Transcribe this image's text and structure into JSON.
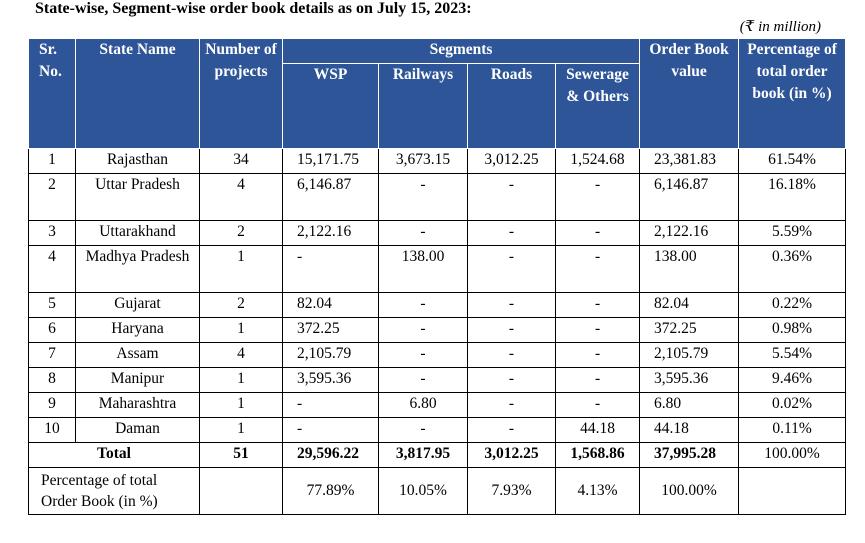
{
  "title": "State-wise, Segment-wise order book details as on July 15, 2023:",
  "unit_note": "(₹ in million)",
  "headers": {
    "sr_no": "Sr. No.",
    "state_name": "State Name",
    "num_projects": "Number of projects",
    "segments": "Segments",
    "wsp": "WSP",
    "railways": "Railways",
    "roads": "Roads",
    "sewerage": "Sewerage & Others",
    "order_book_value": "Order Book value",
    "percentage": "Percentage of total order book (in %)"
  },
  "rows": [
    {
      "sr": "1",
      "state": "Rajasthan",
      "projects": "34",
      "wsp": "15,171.75",
      "railways": "3,673.15",
      "roads": "3,012.25",
      "sewerage": "1,524.68",
      "value": "23,381.83",
      "pct": "61.54%"
    },
    {
      "sr": "2",
      "state": "Uttar Pradesh",
      "projects": "4",
      "wsp": "6,146.87",
      "railways": "-",
      "roads": "-",
      "sewerage": "-",
      "value": "6,146.87",
      "pct": "16.18%"
    },
    {
      "sr": "3",
      "state": "Uttarakhand",
      "projects": "2",
      "wsp": "2,122.16",
      "railways": "-",
      "roads": "-",
      "sewerage": "-",
      "value": "2,122.16",
      "pct": "5.59%"
    },
    {
      "sr": "4",
      "state": "Madhya Pradesh",
      "projects": "1",
      "wsp": "-",
      "railways": "138.00",
      "roads": "-",
      "sewerage": "-",
      "value": "138.00",
      "pct": "0.36%"
    },
    {
      "sr": "5",
      "state": "Gujarat",
      "projects": "2",
      "wsp": "82.04",
      "railways": "-",
      "roads": "-",
      "sewerage": "-",
      "value": "82.04",
      "pct": "0.22%"
    },
    {
      "sr": "6",
      "state": "Haryana",
      "projects": "1",
      "wsp": "372.25",
      "railways": "-",
      "roads": "-",
      "sewerage": "-",
      "value": "372.25",
      "pct": "0.98%"
    },
    {
      "sr": "7",
      "state": "Assam",
      "projects": "4",
      "wsp": "2,105.79",
      "railways": "-",
      "roads": "-",
      "sewerage": "-",
      "value": "2,105.79",
      "pct": "5.54%"
    },
    {
      "sr": "8",
      "state": "Manipur",
      "projects": "1",
      "wsp": "3,595.36",
      "railways": "-",
      "roads": "-",
      "sewerage": "-",
      "value": "3,595.36",
      "pct": "9.46%"
    },
    {
      "sr": "9",
      "state": "Maharashtra",
      "projects": "1",
      "wsp": "-",
      "railways": "6.80",
      "roads": "-",
      "sewerage": "-",
      "value": "6.80",
      "pct": "0.02%"
    },
    {
      "sr": "10",
      "state": "Daman",
      "projects": "1",
      "wsp": "-",
      "railways": "-",
      "roads": "-",
      "sewerage": "44.18",
      "value": "44.18",
      "pct": "0.11%"
    }
  ],
  "total": {
    "label": "Total",
    "projects": "51",
    "wsp": "29,596.22",
    "railways": "3,817.95",
    "roads": "3,012.25",
    "sewerage": "1,568.86",
    "value": "37,995.28",
    "pct": "100.00%"
  },
  "percentage_row": {
    "label": "Percentage of total Order Book (in %)",
    "wsp": "77.89%",
    "railways": "10.05%",
    "roads": "7.93%",
    "sewerage": "4.13%",
    "value": "100.00%",
    "pct": ""
  }
}
